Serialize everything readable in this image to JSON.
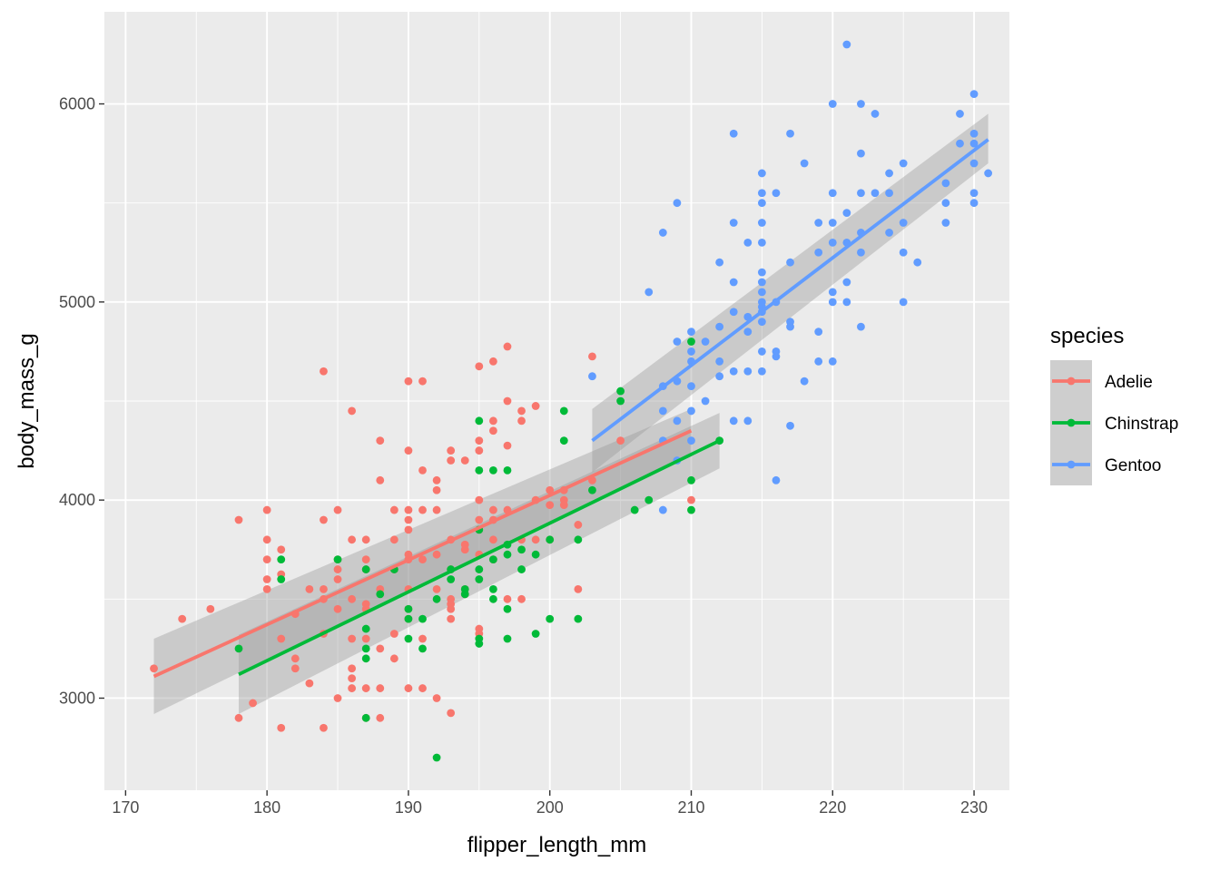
{
  "chart_data": {
    "type": "scatter",
    "title": "",
    "xlabel": "flipper_length_mm",
    "ylabel": "body_mass_g",
    "xlim": [
      168.5,
      232.5
    ],
    "ylim": [
      2535,
      6465
    ],
    "x_ticks": [
      170,
      180,
      190,
      200,
      210,
      220,
      230
    ],
    "y_ticks": [
      3000,
      4000,
      5000,
      6000
    ],
    "grid": true,
    "panel_background": "#EBEBEB",
    "grid_color": "#FFFFFF",
    "ribbon_color": "#999999",
    "legend": {
      "title": "species",
      "position": "right",
      "entries": [
        "Adelie",
        "Chinstrap",
        "Gentoo"
      ]
    },
    "series": [
      {
        "name": "Adelie",
        "color": "#F8766D",
        "smooth": {
          "method": "lm",
          "x": [
            172,
            210
          ],
          "y": [
            3110,
            4350
          ],
          "se_lo": [
            2920,
            4240
          ],
          "se_hi": [
            3300,
            4460
          ]
        },
        "points": [
          [
            172,
            3150
          ],
          [
            174,
            3400
          ],
          [
            176,
            3450
          ],
          [
            178,
            3900
          ],
          [
            178,
            2900
          ],
          [
            179,
            2975
          ],
          [
            180,
            3950
          ],
          [
            180,
            3800
          ],
          [
            180,
            3700
          ],
          [
            180,
            3600
          ],
          [
            180,
            3550
          ],
          [
            181,
            3750
          ],
          [
            181,
            3625
          ],
          [
            181,
            3300
          ],
          [
            181,
            2850
          ],
          [
            182,
            3425
          ],
          [
            182,
            3200
          ],
          [
            182,
            3150
          ],
          [
            183,
            3550
          ],
          [
            183,
            3075
          ],
          [
            184,
            4650
          ],
          [
            184,
            3900
          ],
          [
            184,
            3550
          ],
          [
            184,
            3500
          ],
          [
            184,
            3325
          ],
          [
            184,
            2850
          ],
          [
            185,
            3950
          ],
          [
            185,
            3700
          ],
          [
            185,
            3650
          ],
          [
            185,
            3600
          ],
          [
            185,
            3450
          ],
          [
            185,
            3000
          ],
          [
            186,
            4450
          ],
          [
            186,
            3800
          ],
          [
            186,
            3500
          ],
          [
            186,
            3300
          ],
          [
            186,
            3150
          ],
          [
            186,
            3100
          ],
          [
            186,
            3050
          ],
          [
            187,
            3800
          ],
          [
            187,
            3700
          ],
          [
            187,
            3650
          ],
          [
            187,
            3475
          ],
          [
            187,
            3450
          ],
          [
            187,
            3300
          ],
          [
            187,
            3050
          ],
          [
            187,
            2900
          ],
          [
            188,
            4300
          ],
          [
            188,
            4100
          ],
          [
            188,
            3550
          ],
          [
            188,
            3250
          ],
          [
            188,
            3050
          ],
          [
            188,
            2900
          ],
          [
            189,
            3950
          ],
          [
            189,
            3800
          ],
          [
            189,
            3650
          ],
          [
            189,
            3325
          ],
          [
            189,
            3200
          ],
          [
            190,
            4600
          ],
          [
            190,
            4250
          ],
          [
            190,
            3950
          ],
          [
            190,
            3900
          ],
          [
            190,
            3850
          ],
          [
            190,
            3725
          ],
          [
            190,
            3700
          ],
          [
            190,
            3550
          ],
          [
            190,
            3450
          ],
          [
            190,
            3400
          ],
          [
            190,
            3050
          ],
          [
            191,
            4600
          ],
          [
            191,
            4150
          ],
          [
            191,
            3950
          ],
          [
            191,
            3700
          ],
          [
            191,
            3300
          ],
          [
            191,
            3050
          ],
          [
            192,
            4100
          ],
          [
            192,
            4050
          ],
          [
            192,
            3950
          ],
          [
            192,
            3725
          ],
          [
            192,
            3550
          ],
          [
            192,
            3000
          ],
          [
            193,
            4250
          ],
          [
            193,
            4200
          ],
          [
            193,
            3800
          ],
          [
            193,
            3650
          ],
          [
            193,
            3500
          ],
          [
            193,
            3475
          ],
          [
            193,
            3450
          ],
          [
            193,
            3400
          ],
          [
            193,
            2925
          ],
          [
            194,
            4200
          ],
          [
            194,
            3775
          ],
          [
            194,
            3750
          ],
          [
            194,
            3525
          ],
          [
            194,
            3550
          ],
          [
            195,
            4675
          ],
          [
            195,
            4300
          ],
          [
            195,
            4250
          ],
          [
            195,
            4000
          ],
          [
            195,
            3900
          ],
          [
            195,
            3850
          ],
          [
            195,
            3725
          ],
          [
            195,
            3350
          ],
          [
            195,
            3325
          ],
          [
            196,
            4700
          ],
          [
            196,
            4400
          ],
          [
            196,
            4350
          ],
          [
            196,
            3950
          ],
          [
            196,
            3900
          ],
          [
            196,
            3800
          ],
          [
            196,
            3700
          ],
          [
            197,
            4775
          ],
          [
            197,
            4500
          ],
          [
            197,
            4275
          ],
          [
            197,
            3950
          ],
          [
            197,
            3500
          ],
          [
            198,
            4450
          ],
          [
            198,
            4400
          ],
          [
            198,
            3800
          ],
          [
            198,
            3500
          ],
          [
            199,
            4475
          ],
          [
            199,
            4000
          ],
          [
            199,
            3800
          ],
          [
            200,
            4050
          ],
          [
            200,
            3975
          ],
          [
            200,
            3800
          ],
          [
            201,
            4050
          ],
          [
            201,
            4000
          ],
          [
            201,
            3975
          ],
          [
            202,
            3875
          ],
          [
            202,
            3550
          ],
          [
            203,
            4725
          ],
          [
            203,
            4100
          ],
          [
            205,
            4300
          ],
          [
            210,
            4000
          ]
        ]
      },
      {
        "name": "Chinstrap",
        "color": "#00BA38",
        "smooth": {
          "method": "lm",
          "x": [
            178,
            212
          ],
          "y": [
            3120,
            4300
          ],
          "se_lo": [
            2920,
            4160
          ],
          "se_hi": [
            3320,
            4440
          ]
        },
        "points": [
          [
            178,
            3250
          ],
          [
            181,
            3700
          ],
          [
            181,
            3600
          ],
          [
            185,
            3700
          ],
          [
            187,
            3650
          ],
          [
            187,
            3350
          ],
          [
            187,
            3250
          ],
          [
            187,
            3200
          ],
          [
            187,
            2900
          ],
          [
            188,
            3525
          ],
          [
            189,
            3650
          ],
          [
            190,
            3450
          ],
          [
            190,
            3400
          ],
          [
            190,
            3300
          ],
          [
            191,
            3400
          ],
          [
            191,
            3250
          ],
          [
            192,
            3500
          ],
          [
            192,
            2700
          ],
          [
            193,
            3650
          ],
          [
            193,
            3600
          ],
          [
            194,
            3525
          ],
          [
            194,
            3550
          ],
          [
            195,
            4400
          ],
          [
            195,
            4150
          ],
          [
            195,
            3850
          ],
          [
            195,
            3650
          ],
          [
            195,
            3600
          ],
          [
            195,
            3300
          ],
          [
            195,
            3275
          ],
          [
            196,
            4150
          ],
          [
            196,
            3700
          ],
          [
            196,
            3500
          ],
          [
            196,
            3550
          ],
          [
            197,
            4150
          ],
          [
            197,
            3725
          ],
          [
            197,
            3775
          ],
          [
            197,
            3450
          ],
          [
            197,
            3300
          ],
          [
            198,
            3750
          ],
          [
            198,
            3650
          ],
          [
            199,
            3725
          ],
          [
            199,
            3325
          ],
          [
            200,
            3800
          ],
          [
            200,
            3400
          ],
          [
            201,
            4450
          ],
          [
            201,
            4300
          ],
          [
            202,
            3800
          ],
          [
            202,
            3400
          ],
          [
            203,
            4050
          ],
          [
            205,
            4550
          ],
          [
            205,
            4500
          ],
          [
            206,
            3950
          ],
          [
            207,
            4000
          ],
          [
            210,
            4800
          ],
          [
            210,
            4100
          ],
          [
            210,
            3950
          ],
          [
            212,
            4300
          ]
        ]
      },
      {
        "name": "Gentoo",
        "color": "#619CFF",
        "smooth": {
          "method": "lm",
          "x": [
            203,
            231
          ],
          "y": [
            4300,
            5820
          ],
          "se_lo": [
            4140,
            5700
          ],
          "se_hi": [
            4460,
            5950
          ]
        },
        "points": [
          [
            203,
            4625
          ],
          [
            207,
            5050
          ],
          [
            208,
            5350
          ],
          [
            208,
            4575
          ],
          [
            208,
            4450
          ],
          [
            208,
            4300
          ],
          [
            208,
            3950
          ],
          [
            209,
            5500
          ],
          [
            209,
            4800
          ],
          [
            209,
            4600
          ],
          [
            209,
            4400
          ],
          [
            209,
            4200
          ],
          [
            210,
            4850
          ],
          [
            210,
            4750
          ],
          [
            210,
            4700
          ],
          [
            210,
            4575
          ],
          [
            210,
            4450
          ],
          [
            210,
            4300
          ],
          [
            211,
            4800
          ],
          [
            211,
            4500
          ],
          [
            212,
            5200
          ],
          [
            212,
            4875
          ],
          [
            212,
            4700
          ],
          [
            212,
            4625
          ],
          [
            213,
            5850
          ],
          [
            213,
            5400
          ],
          [
            213,
            5100
          ],
          [
            213,
            4950
          ],
          [
            213,
            4650
          ],
          [
            213,
            4400
          ],
          [
            214,
            5300
          ],
          [
            214,
            4925
          ],
          [
            214,
            4850
          ],
          [
            214,
            4650
          ],
          [
            214,
            4400
          ],
          [
            215,
            5650
          ],
          [
            215,
            5550
          ],
          [
            215,
            5500
          ],
          [
            215,
            5400
          ],
          [
            215,
            5300
          ],
          [
            215,
            5150
          ],
          [
            215,
            5100
          ],
          [
            215,
            5050
          ],
          [
            215,
            5000
          ],
          [
            215,
            4975
          ],
          [
            215,
            4950
          ],
          [
            215,
            4900
          ],
          [
            215,
            4750
          ],
          [
            215,
            4650
          ],
          [
            216,
            5550
          ],
          [
            216,
            5000
          ],
          [
            216,
            4750
          ],
          [
            216,
            4725
          ],
          [
            216,
            4100
          ],
          [
            217,
            5850
          ],
          [
            217,
            5200
          ],
          [
            217,
            4900
          ],
          [
            217,
            4875
          ],
          [
            217,
            4375
          ],
          [
            218,
            5700
          ],
          [
            218,
            4600
          ],
          [
            219,
            5400
          ],
          [
            219,
            5250
          ],
          [
            219,
            4850
          ],
          [
            219,
            4700
          ],
          [
            220,
            6000
          ],
          [
            220,
            5550
          ],
          [
            220,
            5400
          ],
          [
            220,
            5300
          ],
          [
            220,
            5050
          ],
          [
            220,
            5000
          ],
          [
            220,
            4700
          ],
          [
            221,
            6300
          ],
          [
            221,
            5450
          ],
          [
            221,
            5300
          ],
          [
            221,
            5100
          ],
          [
            221,
            5000
          ],
          [
            222,
            6000
          ],
          [
            222,
            5750
          ],
          [
            222,
            5550
          ],
          [
            222,
            5350
          ],
          [
            222,
            5250
          ],
          [
            222,
            4875
          ],
          [
            223,
            5950
          ],
          [
            223,
            5550
          ],
          [
            224,
            5650
          ],
          [
            224,
            5550
          ],
          [
            224,
            5350
          ],
          [
            225,
            5700
          ],
          [
            225,
            5400
          ],
          [
            225,
            5250
          ],
          [
            225,
            5000
          ],
          [
            226,
            5200
          ],
          [
            228,
            5600
          ],
          [
            228,
            5500
          ],
          [
            228,
            5400
          ],
          [
            229,
            5950
          ],
          [
            229,
            5800
          ],
          [
            230,
            6050
          ],
          [
            230,
            5850
          ],
          [
            230,
            5800
          ],
          [
            230,
            5700
          ],
          [
            230,
            5550
          ],
          [
            230,
            5500
          ],
          [
            231,
            5650
          ]
        ]
      }
    ]
  }
}
